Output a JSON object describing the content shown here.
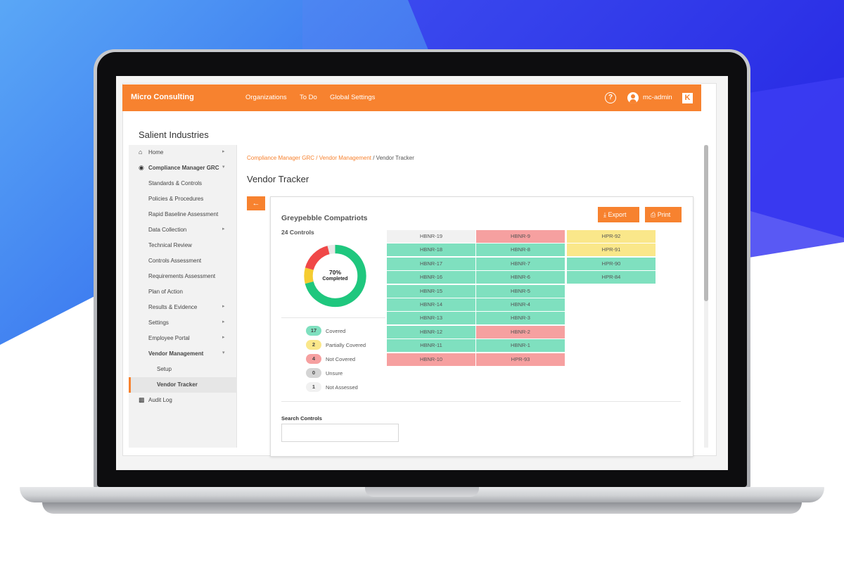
{
  "topbar": {
    "brand": "Micro Consulting",
    "nav": [
      "Organizations",
      "To Do",
      "Global Settings"
    ],
    "username": "mc-admin",
    "help_icon": "question-circle-icon",
    "logo_glyph": "K"
  },
  "org_title": "Salient Industries",
  "sidebar": {
    "items": [
      {
        "label": "Home",
        "icon": "home-icon"
      },
      {
        "label": "Compliance Manager GRC",
        "icon": "shield-icon"
      },
      {
        "label": "Standards & Controls"
      },
      {
        "label": "Policies & Procedures"
      },
      {
        "label": "Rapid Baseline Assessment"
      },
      {
        "label": "Data Collection"
      },
      {
        "label": "Technical Review"
      },
      {
        "label": "Controls Assessment"
      },
      {
        "label": "Requirements Assessment"
      },
      {
        "label": "Plan of Action"
      },
      {
        "label": "Results & Evidence"
      },
      {
        "label": "Settings"
      },
      {
        "label": "Employee Portal"
      },
      {
        "label": "Vendor Management"
      },
      {
        "label": "Setup"
      },
      {
        "label": "Vendor Tracker"
      },
      {
        "label": "Audit Log",
        "icon": "clipboard-icon"
      }
    ]
  },
  "breadcrumb": {
    "items": [
      "Compliance Manager GRC",
      "Vendor Management"
    ],
    "current": "Vendor Tracker",
    "separator": " / "
  },
  "page_title": "Vendor Tracker",
  "vendor": {
    "name": "Greypebble Compatriots",
    "controls_count": "24 Controls",
    "completed_pct": "70%",
    "completed_label": "Completed",
    "export_label": "Export",
    "print_label": "Print"
  },
  "legend": [
    {
      "count": "17",
      "label": "Covered",
      "color": "#7fe0bf"
    },
    {
      "count": "2",
      "label": "Partially Covered",
      "color": "#fae78a"
    },
    {
      "count": "4",
      "label": "Not Covered",
      "color": "#f6a0a0"
    },
    {
      "count": "0",
      "label": "Unsure",
      "color": "#d4d4d4"
    },
    {
      "count": "1",
      "label": "Not Assessed",
      "color": "#f1f1f1"
    }
  ],
  "donut": {
    "covered": 17,
    "partial": 2,
    "not_covered": 4,
    "not_assessed": 1,
    "colors": {
      "covered": "#1fc77e",
      "partial": "#f5cc31",
      "not_covered": "#f04848",
      "not_assessed": "#e8e8e8"
    }
  },
  "tiles": {
    "col1": [
      {
        "label": "HBNR-19",
        "status": "na"
      },
      {
        "label": "HBNR-18",
        "status": "covered"
      },
      {
        "label": "HBNR-17",
        "status": "covered"
      },
      {
        "label": "HBNR-16",
        "status": "covered"
      },
      {
        "label": "HBNR-15",
        "status": "covered"
      },
      {
        "label": "HBNR-14",
        "status": "covered"
      },
      {
        "label": "HBNR-13",
        "status": "covered"
      },
      {
        "label": "HBNR-12",
        "status": "covered"
      },
      {
        "label": "HBNR-11",
        "status": "covered"
      },
      {
        "label": "HBNR-10",
        "status": "not"
      }
    ],
    "col2": [
      {
        "label": "HBNR-9",
        "status": "not"
      },
      {
        "label": "HBNR-8",
        "status": "covered"
      },
      {
        "label": "HBNR-7",
        "status": "covered"
      },
      {
        "label": "HBNR-6",
        "status": "covered"
      },
      {
        "label": "HBNR-5",
        "status": "covered"
      },
      {
        "label": "HBNR-4",
        "status": "covered"
      },
      {
        "label": "HBNR-3",
        "status": "covered"
      },
      {
        "label": "HBNR-2",
        "status": "not"
      },
      {
        "label": "HBNR-1",
        "status": "covered"
      },
      {
        "label": "HPR-93",
        "status": "not"
      }
    ],
    "col3": [
      {
        "label": "HPR-92",
        "status": "partial"
      },
      {
        "label": "HPR-91",
        "status": "partial"
      },
      {
        "label": "HPR-90",
        "status": "covered"
      },
      {
        "label": "HPR-84",
        "status": "covered"
      }
    ]
  },
  "search": {
    "label": "Search Controls",
    "value": "",
    "placeholder": ""
  }
}
